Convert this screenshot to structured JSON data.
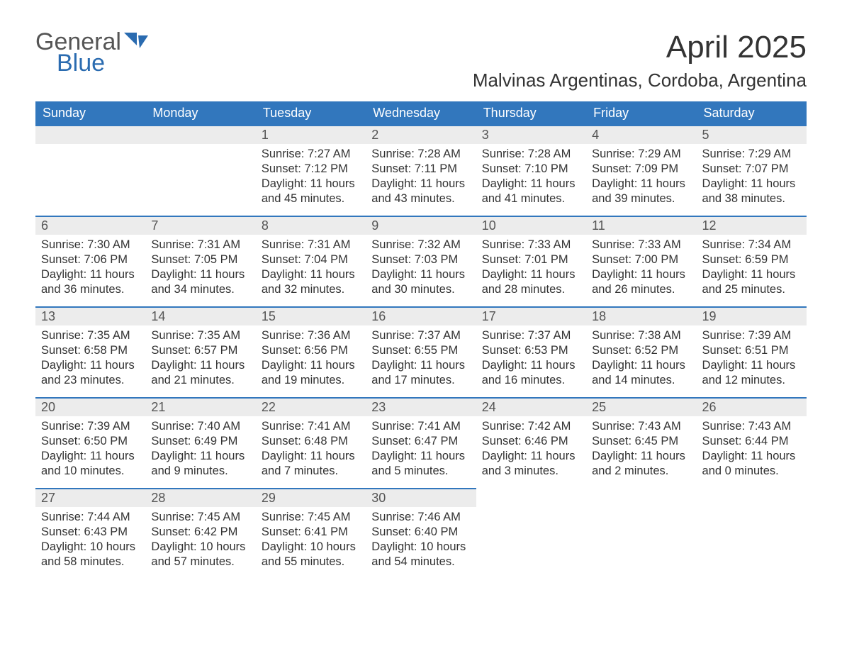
{
  "logo": {
    "word1": "General",
    "word2": "Blue",
    "text_color": "#555555",
    "accent_color": "#2a6bb0"
  },
  "title": "April 2025",
  "location": "Malvinas Argentinas, Cordoba, Argentina",
  "colors": {
    "header_bg": "#3277bd",
    "header_text": "#ffffff",
    "daynum_bg": "#ececec",
    "row_border": "#3277bd",
    "body_text": "#333333",
    "background": "#ffffff"
  },
  "typography": {
    "title_fontsize": 44,
    "location_fontsize": 26,
    "dayhead_fontsize": 18,
    "body_fontsize": 16.5
  },
  "day_headers": [
    "Sunday",
    "Monday",
    "Tuesday",
    "Wednesday",
    "Thursday",
    "Friday",
    "Saturday"
  ],
  "weeks": [
    [
      {
        "day": "",
        "lines": []
      },
      {
        "day": "",
        "lines": []
      },
      {
        "day": "1",
        "lines": [
          "Sunrise: 7:27 AM",
          "Sunset: 7:12 PM",
          "Daylight: 11 hours and 45 minutes."
        ]
      },
      {
        "day": "2",
        "lines": [
          "Sunrise: 7:28 AM",
          "Sunset: 7:11 PM",
          "Daylight: 11 hours and 43 minutes."
        ]
      },
      {
        "day": "3",
        "lines": [
          "Sunrise: 7:28 AM",
          "Sunset: 7:10 PM",
          "Daylight: 11 hours and 41 minutes."
        ]
      },
      {
        "day": "4",
        "lines": [
          "Sunrise: 7:29 AM",
          "Sunset: 7:09 PM",
          "Daylight: 11 hours and 39 minutes."
        ]
      },
      {
        "day": "5",
        "lines": [
          "Sunrise: 7:29 AM",
          "Sunset: 7:07 PM",
          "Daylight: 11 hours and 38 minutes."
        ]
      }
    ],
    [
      {
        "day": "6",
        "lines": [
          "Sunrise: 7:30 AM",
          "Sunset: 7:06 PM",
          "Daylight: 11 hours and 36 minutes."
        ]
      },
      {
        "day": "7",
        "lines": [
          "Sunrise: 7:31 AM",
          "Sunset: 7:05 PM",
          "Daylight: 11 hours and 34 minutes."
        ]
      },
      {
        "day": "8",
        "lines": [
          "Sunrise: 7:31 AM",
          "Sunset: 7:04 PM",
          "Daylight: 11 hours and 32 minutes."
        ]
      },
      {
        "day": "9",
        "lines": [
          "Sunrise: 7:32 AM",
          "Sunset: 7:03 PM",
          "Daylight: 11 hours and 30 minutes."
        ]
      },
      {
        "day": "10",
        "lines": [
          "Sunrise: 7:33 AM",
          "Sunset: 7:01 PM",
          "Daylight: 11 hours and 28 minutes."
        ]
      },
      {
        "day": "11",
        "lines": [
          "Sunrise: 7:33 AM",
          "Sunset: 7:00 PM",
          "Daylight: 11 hours and 26 minutes."
        ]
      },
      {
        "day": "12",
        "lines": [
          "Sunrise: 7:34 AM",
          "Sunset: 6:59 PM",
          "Daylight: 11 hours and 25 minutes."
        ]
      }
    ],
    [
      {
        "day": "13",
        "lines": [
          "Sunrise: 7:35 AM",
          "Sunset: 6:58 PM",
          "Daylight: 11 hours and 23 minutes."
        ]
      },
      {
        "day": "14",
        "lines": [
          "Sunrise: 7:35 AM",
          "Sunset: 6:57 PM",
          "Daylight: 11 hours and 21 minutes."
        ]
      },
      {
        "day": "15",
        "lines": [
          "Sunrise: 7:36 AM",
          "Sunset: 6:56 PM",
          "Daylight: 11 hours and 19 minutes."
        ]
      },
      {
        "day": "16",
        "lines": [
          "Sunrise: 7:37 AM",
          "Sunset: 6:55 PM",
          "Daylight: 11 hours and 17 minutes."
        ]
      },
      {
        "day": "17",
        "lines": [
          "Sunrise: 7:37 AM",
          "Sunset: 6:53 PM",
          "Daylight: 11 hours and 16 minutes."
        ]
      },
      {
        "day": "18",
        "lines": [
          "Sunrise: 7:38 AM",
          "Sunset: 6:52 PM",
          "Daylight: 11 hours and 14 minutes."
        ]
      },
      {
        "day": "19",
        "lines": [
          "Sunrise: 7:39 AM",
          "Sunset: 6:51 PM",
          "Daylight: 11 hours and 12 minutes."
        ]
      }
    ],
    [
      {
        "day": "20",
        "lines": [
          "Sunrise: 7:39 AM",
          "Sunset: 6:50 PM",
          "Daylight: 11 hours and 10 minutes."
        ]
      },
      {
        "day": "21",
        "lines": [
          "Sunrise: 7:40 AM",
          "Sunset: 6:49 PM",
          "Daylight: 11 hours and 9 minutes."
        ]
      },
      {
        "day": "22",
        "lines": [
          "Sunrise: 7:41 AM",
          "Sunset: 6:48 PM",
          "Daylight: 11 hours and 7 minutes."
        ]
      },
      {
        "day": "23",
        "lines": [
          "Sunrise: 7:41 AM",
          "Sunset: 6:47 PM",
          "Daylight: 11 hours and 5 minutes."
        ]
      },
      {
        "day": "24",
        "lines": [
          "Sunrise: 7:42 AM",
          "Sunset: 6:46 PM",
          "Daylight: 11 hours and 3 minutes."
        ]
      },
      {
        "day": "25",
        "lines": [
          "Sunrise: 7:43 AM",
          "Sunset: 6:45 PM",
          "Daylight: 11 hours and 2 minutes."
        ]
      },
      {
        "day": "26",
        "lines": [
          "Sunrise: 7:43 AM",
          "Sunset: 6:44 PM",
          "Daylight: 11 hours and 0 minutes."
        ]
      }
    ],
    [
      {
        "day": "27",
        "lines": [
          "Sunrise: 7:44 AM",
          "Sunset: 6:43 PM",
          "Daylight: 10 hours and 58 minutes."
        ]
      },
      {
        "day": "28",
        "lines": [
          "Sunrise: 7:45 AM",
          "Sunset: 6:42 PM",
          "Daylight: 10 hours and 57 minutes."
        ]
      },
      {
        "day": "29",
        "lines": [
          "Sunrise: 7:45 AM",
          "Sunset: 6:41 PM",
          "Daylight: 10 hours and 55 minutes."
        ]
      },
      {
        "day": "30",
        "lines": [
          "Sunrise: 7:46 AM",
          "Sunset: 6:40 PM",
          "Daylight: 10 hours and 54 minutes."
        ]
      },
      {
        "day": "",
        "lines": []
      },
      {
        "day": "",
        "lines": []
      },
      {
        "day": "",
        "lines": []
      }
    ]
  ]
}
